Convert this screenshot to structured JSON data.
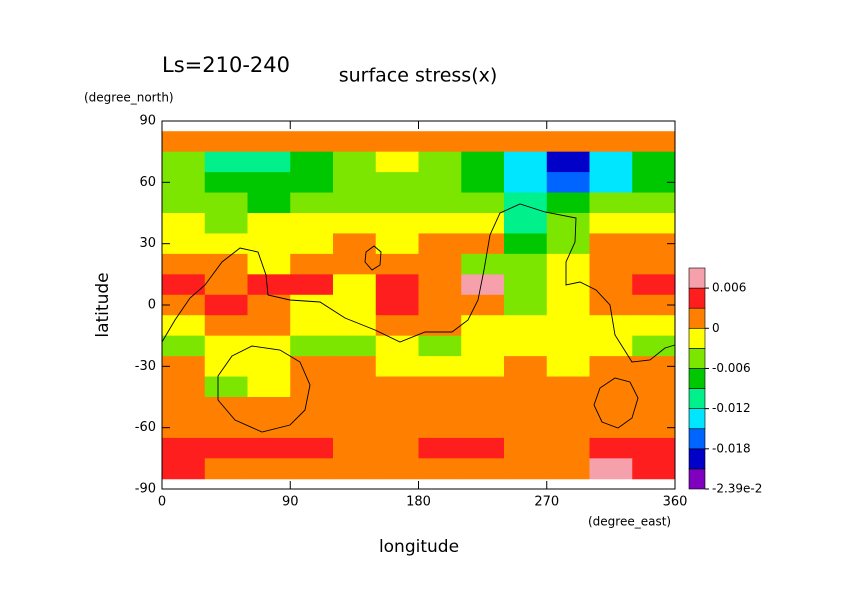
{
  "chart_data": {
    "type": "contour",
    "title": "surface stress(x)",
    "subtitle": "Ls=210-240",
    "x_label": "longitude",
    "y_label": "latitude",
    "x_units": "(degree_east)",
    "y_units": "(degree_north)",
    "xlim": [
      0,
      360
    ],
    "ylim": [
      -90,
      90
    ],
    "xticks": [
      0,
      90,
      180,
      270,
      360
    ],
    "yticks": [
      -90,
      -60,
      -30,
      0,
      30,
      60,
      90
    ],
    "x": [
      15,
      45,
      75,
      105,
      135,
      165,
      195,
      225,
      255,
      285,
      315,
      345
    ],
    "y": [
      80,
      70,
      60,
      50,
      40,
      30,
      20,
      10,
      0,
      -10,
      -20,
      -30,
      -40,
      -50,
      -60,
      -70,
      -80
    ],
    "z": [
      [
        0.0015,
        0.0015,
        0.0015,
        0.0015,
        0.0015,
        0.0015,
        0.0015,
        0.0015,
        0.0015,
        0.0015,
        0.0015,
        0.0015
      ],
      [
        -0.0045,
        -0.0105,
        -0.0105,
        -0.0075,
        -0.0045,
        -0.0015,
        -0.0045,
        -0.0075,
        -0.0135,
        -0.0195,
        -0.0135,
        -0.0075
      ],
      [
        -0.0045,
        -0.0075,
        -0.0075,
        -0.0075,
        -0.0045,
        -0.0045,
        -0.0045,
        -0.0075,
        -0.0135,
        -0.0165,
        -0.0135,
        -0.0075
      ],
      [
        -0.0045,
        -0.0045,
        -0.0075,
        -0.0045,
        -0.0045,
        -0.0045,
        -0.0045,
        -0.0045,
        -0.0105,
        -0.0075,
        -0.0045,
        -0.0045
      ],
      [
        -0.0015,
        -0.0045,
        -0.0015,
        -0.0015,
        -0.0015,
        -0.0015,
        -0.0015,
        -0.0015,
        -0.0105,
        -0.0045,
        -0.0015,
        -0.0015
      ],
      [
        -0.0015,
        -0.0015,
        -0.0015,
        -0.0015,
        0.0015,
        -0.0015,
        0.0015,
        0.0015,
        -0.0075,
        -0.0045,
        0.0015,
        0.0015
      ],
      [
        0.0015,
        0.0015,
        -0.0015,
        0.0015,
        0.0015,
        0.0015,
        0.0015,
        -0.0045,
        -0.0045,
        -0.0015,
        0.0015,
        0.0015
      ],
      [
        0.0045,
        0.0015,
        0.0045,
        0.0045,
        -0.0015,
        0.0045,
        0.0015,
        0.0075,
        -0.0045,
        -0.0015,
        0.0015,
        0.0045
      ],
      [
        0.0015,
        0.0045,
        0.0015,
        -0.0015,
        -0.0015,
        0.0045,
        0.0015,
        0.0015,
        -0.0045,
        -0.0015,
        0.0015,
        0.0015
      ],
      [
        -0.0015,
        0.0015,
        0.0015,
        -0.0015,
        -0.0015,
        0.0015,
        0.0015,
        -0.0015,
        -0.0015,
        -0.0015,
        -0.0015,
        -0.0015
      ],
      [
        -0.0045,
        -0.0015,
        -0.0015,
        -0.0045,
        -0.0045,
        -0.0015,
        -0.0045,
        -0.0015,
        -0.0015,
        -0.0015,
        -0.0015,
        -0.0045
      ],
      [
        0.0015,
        -0.0015,
        -0.0015,
        0.0015,
        0.0015,
        -0.0015,
        -0.0015,
        -0.0015,
        0.0015,
        -0.0015,
        0.0015,
        0.0015
      ],
      [
        0.0015,
        -0.0045,
        -0.0015,
        0.0015,
        0.0015,
        0.0015,
        0.0015,
        0.0015,
        0.0015,
        0.0015,
        0.0015,
        0.0015
      ],
      [
        0.0015,
        0.0015,
        0.0015,
        0.0015,
        0.0015,
        0.0015,
        0.0015,
        0.0015,
        0.0015,
        0.0015,
        0.0015,
        0.0015
      ],
      [
        0.0015,
        0.0015,
        0.0015,
        0.0015,
        0.0015,
        0.0015,
        0.0015,
        0.0015,
        0.0015,
        0.0015,
        0.0015,
        0.0015
      ],
      [
        0.0045,
        0.0045,
        0.0045,
        0.0045,
        0.0015,
        0.0015,
        0.0045,
        0.0045,
        0.0015,
        0.0015,
        0.0045,
        0.0045
      ],
      [
        0.0045,
        0.0015,
        0.0015,
        0.0015,
        0.0015,
        0.0015,
        0.0015,
        0.0015,
        0.0015,
        0.0015,
        0.0075,
        0.0045
      ]
    ],
    "levels": [
      -0.0239,
      -0.021,
      -0.018,
      -0.015,
      -0.012,
      -0.009,
      -0.006,
      -0.003,
      0,
      0.003,
      0.006,
      0.009
    ],
    "colors": [
      "#8000c0",
      "#0000c8",
      "#0064ff",
      "#00e6ff",
      "#00f08c",
      "#00c800",
      "#7ce600",
      "#ffff00",
      "#ff8000",
      "#ff1e1e",
      "#f5a0aa"
    ],
    "colorbar_ticks": [
      {
        "value": -0.0239,
        "label": "-2.39e-2"
      },
      -0.018,
      -0.012,
      -0.006,
      0,
      0.006
    ]
  }
}
